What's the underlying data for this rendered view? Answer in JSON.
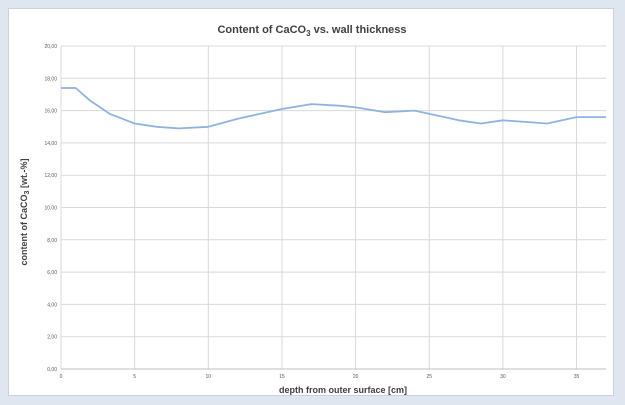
{
  "chart_data": {
    "type": "line",
    "title_main": "Content of CaCO",
    "title_sub": "3",
    "title_tail": " vs. wall thickness",
    "xlabel": "depth from outer surface [cm]",
    "ylabel_main": "content of CaCO",
    "ylabel_sub": "3",
    "ylabel_tail": " [wt.-%]",
    "xlim": [
      0,
      37
    ],
    "ylim": [
      0,
      20
    ],
    "x_ticks": [
      0,
      5,
      10,
      15,
      20,
      25,
      30,
      35
    ],
    "x_tick_labels": [
      "0",
      "5",
      "10",
      "15",
      "20",
      "25",
      "30",
      "35"
    ],
    "y_ticks": [
      0,
      2,
      4,
      6,
      8,
      10,
      12,
      14,
      16,
      18,
      20
    ],
    "y_tick_labels": [
      "0,00",
      "2,00",
      "4,00",
      "6,00",
      "8,00",
      "10,00",
      "12,00",
      "14,00",
      "16,00",
      "18,00",
      "20,00"
    ],
    "grid": true,
    "legend": "none",
    "line_color": "#8fb3e0",
    "series": [
      {
        "x": [
          0,
          1,
          2,
          3.3,
          5,
          6.5,
          8,
          10,
          12,
          14,
          15,
          17,
          19,
          20,
          22,
          24,
          25.5,
          27,
          28.5,
          30,
          31.5,
          33,
          35,
          37
        ],
        "values": [
          17.4,
          17.4,
          16.6,
          15.8,
          15.2,
          15.0,
          14.9,
          15.0,
          15.5,
          15.9,
          16.1,
          16.4,
          16.3,
          16.2,
          15.9,
          16.0,
          15.7,
          15.4,
          15.2,
          15.4,
          15.3,
          15.2,
          15.6,
          15.6
        ]
      }
    ]
  }
}
